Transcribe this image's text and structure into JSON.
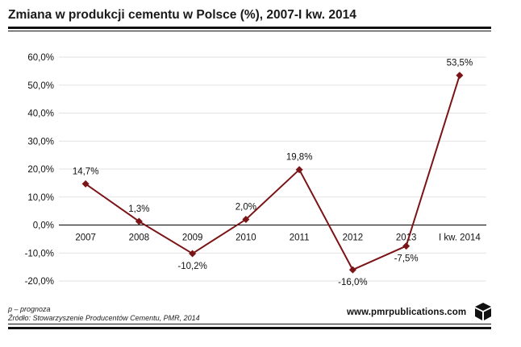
{
  "header": {
    "title": "Zmiana w produkcji cementu w Polsce (%), 2007-I kw. 2014"
  },
  "footer": {
    "note": "p – prognoza",
    "source": "Źródło: Stowarzyszenie Producentów Cementu, PMR, 2014",
    "brand": "www.pmrpublications.com"
  },
  "colors": {
    "series": "#7b1416",
    "grid": "#d9d9d9",
    "axis": "#000000"
  },
  "chart_data": {
    "type": "line",
    "categories": [
      "2007",
      "2008",
      "2009",
      "2010",
      "2011",
      "2012",
      "2013",
      "I kw. 2014"
    ],
    "series": [
      {
        "values": [
          14.7,
          1.3,
          -10.2,
          2.0,
          19.8,
          -16.0,
          -7.5,
          53.5
        ],
        "labels": [
          "14,7%",
          "1,3%",
          "-10,2%",
          "2,0%",
          "19,8%",
          "-16,0%",
          "-7,5%",
          "53,5%"
        ]
      }
    ],
    "ylim": [
      -20,
      60
    ],
    "yticks": [
      60,
      50,
      40,
      30,
      20,
      10,
      0,
      -10,
      -20
    ],
    "ytick_labels": [
      "60,0%",
      "50,0%",
      "40,0%",
      "30,0%",
      "20,0%",
      "10,0%",
      "0,0%",
      "-10,0%",
      "-20,0%"
    ],
    "grid": true,
    "marker": "diamond"
  }
}
